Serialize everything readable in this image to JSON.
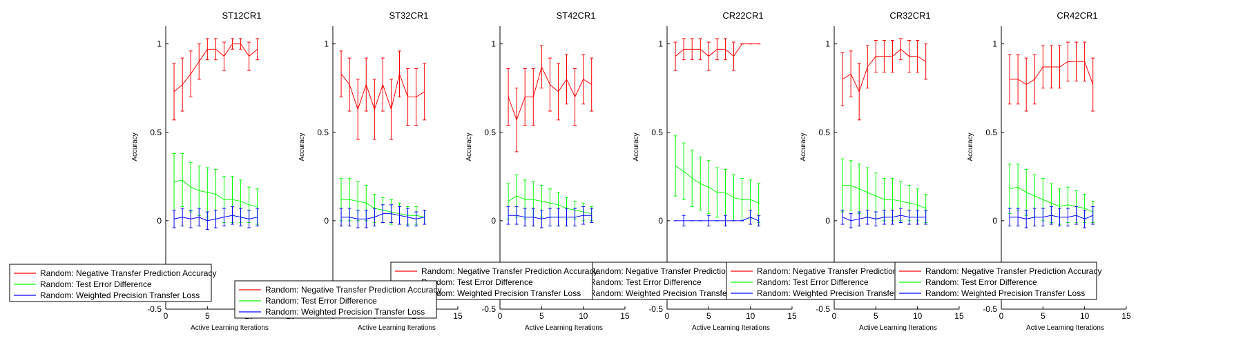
{
  "figure": {
    "legend_entries": [
      {
        "label": "Random: Negative Transfer Prediction Accuracy",
        "color": "#ff0000"
      },
      {
        "label": "Random: Test Error Difference",
        "color": "#00ff00"
      },
      {
        "label": "Random: Weighted Precision Transfer Loss",
        "color": "#0000ff"
      }
    ]
  },
  "chart_data": [
    {
      "type": "line",
      "title": "ST12CR1",
      "xlabel": "Active Learning Iterations",
      "ylabel": "Accuracy",
      "xlim": [
        0,
        15
      ],
      "ylim": [
        -0.5,
        1.1
      ],
      "xticks": [
        0,
        5,
        10,
        15
      ],
      "yticks": [
        -0.5,
        0,
        0.5,
        1
      ],
      "grid": false,
      "legend": "bottom-left",
      "series": [
        {
          "name": "Random: Negative Transfer Prediction Accuracy",
          "color": "#ff0000",
          "x": [
            1,
            2,
            3,
            4,
            5,
            6,
            7,
            8,
            9,
            10,
            11
          ],
          "y": [
            0.73,
            0.77,
            0.83,
            0.9,
            0.97,
            0.97,
            0.93,
            1.0,
            1.0,
            0.93,
            0.97
          ],
          "err": [
            0.16,
            0.15,
            0.13,
            0.1,
            0.06,
            0.06,
            0.08,
            0.03,
            0.03,
            0.08,
            0.06
          ]
        },
        {
          "name": "Random: Test Error Difference",
          "color": "#00ff00",
          "x": [
            1,
            2,
            3,
            4,
            5,
            6,
            7,
            8,
            9,
            10,
            11
          ],
          "y": [
            0.22,
            0.23,
            0.19,
            0.17,
            0.16,
            0.15,
            0.12,
            0.12,
            0.11,
            0.09,
            0.08
          ],
          "err": [
            0.16,
            0.15,
            0.14,
            0.14,
            0.14,
            0.14,
            0.13,
            0.13,
            0.12,
            0.1,
            0.1
          ]
        },
        {
          "name": "Random: Weighted Precision Transfer Loss",
          "color": "#0000ff",
          "x": [
            1,
            2,
            3,
            4,
            5,
            6,
            7,
            8,
            9,
            10,
            11
          ],
          "y": [
            0.01,
            0.02,
            0.01,
            0.02,
            0.0,
            0.01,
            0.02,
            0.03,
            0.02,
            0.01,
            0.02
          ],
          "err": [
            0.05,
            0.05,
            0.05,
            0.05,
            0.05,
            0.05,
            0.05,
            0.05,
            0.05,
            0.05,
            0.05
          ]
        }
      ]
    },
    {
      "type": "line",
      "title": "ST32CR1",
      "xlabel": "Active Learning Iterations",
      "ylabel": "Accuracy",
      "xlim": [
        0,
        15
      ],
      "ylim": [
        -0.5,
        1.1
      ],
      "xticks": [
        0,
        5,
        10,
        15
      ],
      "yticks": [
        -0.5,
        0,
        0.5,
        1
      ],
      "grid": false,
      "legend": "bottom-left",
      "series": [
        {
          "name": "Random: Negative Transfer Prediction Accuracy",
          "color": "#ff0000",
          "x": [
            1,
            2,
            3,
            4,
            5,
            6,
            7,
            8,
            9,
            10,
            11
          ],
          "y": [
            0.83,
            0.77,
            0.63,
            0.77,
            0.63,
            0.77,
            0.63,
            0.83,
            0.7,
            0.7,
            0.73
          ],
          "err": [
            0.13,
            0.15,
            0.17,
            0.15,
            0.17,
            0.15,
            0.17,
            0.13,
            0.16,
            0.16,
            0.16
          ]
        },
        {
          "name": "Random: Test Error Difference",
          "color": "#00ff00",
          "x": [
            1,
            2,
            3,
            4,
            5,
            6,
            7,
            8,
            9,
            10,
            11
          ],
          "y": [
            0.12,
            0.12,
            0.11,
            0.1,
            0.07,
            0.06,
            0.05,
            0.04,
            0.03,
            0.03,
            0.02
          ],
          "err": [
            0.12,
            0.12,
            0.11,
            0.1,
            0.08,
            0.07,
            0.07,
            0.06,
            0.05,
            0.05,
            0.04
          ]
        },
        {
          "name": "Random: Weighted Precision Transfer Loss",
          "color": "#0000ff",
          "x": [
            1,
            2,
            3,
            4,
            5,
            6,
            7,
            8,
            9,
            10,
            11
          ],
          "y": [
            0.02,
            0.02,
            0.01,
            0.01,
            0.02,
            0.04,
            0.04,
            0.03,
            0.02,
            0.01,
            0.02
          ],
          "err": [
            0.05,
            0.05,
            0.05,
            0.05,
            0.05,
            0.05,
            0.05,
            0.05,
            0.05,
            0.04,
            0.04
          ]
        }
      ]
    },
    {
      "type": "line",
      "title": "ST42CR1",
      "xlabel": "Active Learning Iterations",
      "ylabel": "Accuracy",
      "xlim": [
        0,
        15
      ],
      "ylim": [
        -0.5,
        1.1
      ],
      "xticks": [
        0,
        5,
        10,
        15
      ],
      "yticks": [
        -0.5,
        0,
        0.5,
        1
      ],
      "grid": false,
      "legend": "bottom-left",
      "series": [
        {
          "name": "Random: Negative Transfer Prediction Accuracy",
          "color": "#ff0000",
          "x": [
            1,
            2,
            3,
            4,
            5,
            6,
            7,
            8,
            9,
            10,
            11
          ],
          "y": [
            0.7,
            0.57,
            0.7,
            0.7,
            0.87,
            0.77,
            0.73,
            0.8,
            0.7,
            0.8,
            0.77
          ],
          "err": [
            0.16,
            0.18,
            0.16,
            0.16,
            0.12,
            0.15,
            0.16,
            0.14,
            0.16,
            0.14,
            0.15
          ]
        },
        {
          "name": "Random: Test Error Difference",
          "color": "#00ff00",
          "x": [
            1,
            2,
            3,
            4,
            5,
            6,
            7,
            8,
            9,
            10,
            11
          ],
          "y": [
            0.11,
            0.14,
            0.12,
            0.12,
            0.11,
            0.1,
            0.09,
            0.07,
            0.06,
            0.05,
            0.04
          ],
          "err": [
            0.1,
            0.12,
            0.11,
            0.1,
            0.09,
            0.08,
            0.07,
            0.06,
            0.05,
            0.05,
            0.04
          ]
        },
        {
          "name": "Random: Weighted Precision Transfer Loss",
          "color": "#0000ff",
          "x": [
            1,
            2,
            3,
            4,
            5,
            6,
            7,
            8,
            9,
            10,
            11
          ],
          "y": [
            0.03,
            0.03,
            0.02,
            0.02,
            0.01,
            0.02,
            0.02,
            0.02,
            0.02,
            0.03,
            0.03
          ],
          "err": [
            0.05,
            0.05,
            0.05,
            0.05,
            0.05,
            0.05,
            0.05,
            0.05,
            0.05,
            0.05,
            0.04
          ]
        }
      ]
    },
    {
      "type": "line",
      "title": "CR22CR1",
      "xlabel": "Active Learning Iterations",
      "ylabel": "Accuracy",
      "xlim": [
        0,
        15
      ],
      "ylim": [
        -0.5,
        1.1
      ],
      "xticks": [
        0,
        5,
        10,
        15
      ],
      "yticks": [
        -0.5,
        0,
        0.5,
        1
      ],
      "grid": false,
      "legend": "bottom-left",
      "series": [
        {
          "name": "Random: Negative Transfer Prediction Accuracy",
          "color": "#ff0000",
          "x": [
            1,
            2,
            3,
            4,
            5,
            6,
            7,
            8,
            9,
            10,
            11
          ],
          "y": [
            0.93,
            0.97,
            0.97,
            0.97,
            0.93,
            0.97,
            0.97,
            0.93,
            1.0,
            1.0,
            1.0
          ],
          "err": [
            0.08,
            0.06,
            0.06,
            0.06,
            0.08,
            0.06,
            0.06,
            0.08,
            0.0,
            0.0,
            0.0
          ]
        },
        {
          "name": "Random: Test Error Difference",
          "color": "#00ff00",
          "x": [
            1,
            2,
            3,
            4,
            5,
            6,
            7,
            8,
            9,
            10,
            11
          ],
          "y": [
            0.31,
            0.28,
            0.24,
            0.21,
            0.19,
            0.16,
            0.16,
            0.13,
            0.12,
            0.12,
            0.1
          ],
          "err": [
            0.17,
            0.16,
            0.16,
            0.15,
            0.15,
            0.14,
            0.13,
            0.13,
            0.12,
            0.11,
            0.11
          ]
        },
        {
          "name": "Random: Weighted Precision Transfer Loss",
          "color": "#0000ff",
          "x": [
            1,
            2,
            3,
            4,
            5,
            6,
            7,
            8,
            9,
            10,
            11
          ],
          "y": [
            0.0,
            0.0,
            0.0,
            0.0,
            0.0,
            0.0,
            0.0,
            0.0,
            0.0,
            0.02,
            0.0
          ],
          "err": [
            0.0,
            0.03,
            0.0,
            0.0,
            0.03,
            0.0,
            0.03,
            0.0,
            0.0,
            0.04,
            0.03
          ]
        }
      ]
    },
    {
      "type": "line",
      "title": "CR32CR1",
      "xlabel": "Active Learning Iterations",
      "ylabel": "Accuracy",
      "xlim": [
        0,
        15
      ],
      "ylim": [
        -0.5,
        1.1
      ],
      "xticks": [
        0,
        5,
        10,
        15
      ],
      "yticks": [
        -0.5,
        0,
        0.5,
        1
      ],
      "grid": false,
      "legend": "bottom-left",
      "series": [
        {
          "name": "Random: Negative Transfer Prediction Accuracy",
          "color": "#ff0000",
          "x": [
            1,
            2,
            3,
            4,
            5,
            6,
            7,
            8,
            9,
            10,
            11
          ],
          "y": [
            0.8,
            0.83,
            0.73,
            0.87,
            0.93,
            0.93,
            0.93,
            0.97,
            0.93,
            0.93,
            0.9
          ],
          "err": [
            0.15,
            0.13,
            0.16,
            0.12,
            0.09,
            0.09,
            0.09,
            0.06,
            0.09,
            0.09,
            0.1
          ]
        },
        {
          "name": "Random: Test Error Difference",
          "color": "#00ff00",
          "x": [
            1,
            2,
            3,
            4,
            5,
            6,
            7,
            8,
            9,
            10,
            11
          ],
          "y": [
            0.2,
            0.2,
            0.18,
            0.16,
            0.14,
            0.12,
            0.12,
            0.11,
            0.1,
            0.09,
            0.07
          ],
          "err": [
            0.15,
            0.14,
            0.14,
            0.14,
            0.13,
            0.12,
            0.12,
            0.11,
            0.1,
            0.09,
            0.08
          ]
        },
        {
          "name": "Random: Weighted Precision Transfer Loss",
          "color": "#0000ff",
          "x": [
            1,
            2,
            3,
            4,
            5,
            6,
            7,
            8,
            9,
            10,
            11
          ],
          "y": [
            0.02,
            0.0,
            0.01,
            0.02,
            0.01,
            0.02,
            0.02,
            0.03,
            0.02,
            0.02,
            0.02
          ],
          "err": [
            0.04,
            0.04,
            0.04,
            0.04,
            0.04,
            0.04,
            0.04,
            0.04,
            0.04,
            0.04,
            0.04
          ]
        }
      ]
    },
    {
      "type": "line",
      "title": "CR42CR1",
      "xlabel": "Active Learning Iterations",
      "ylabel": "Accuracy",
      "xlim": [
        0,
        15
      ],
      "ylim": [
        -0.5,
        1.1
      ],
      "xticks": [
        0,
        5,
        10,
        15
      ],
      "yticks": [
        -0.5,
        0,
        0.5,
        1
      ],
      "grid": false,
      "legend": "bottom-left",
      "series": [
        {
          "name": "Random: Negative Transfer Prediction Accuracy",
          "color": "#ff0000",
          "x": [
            1,
            2,
            3,
            4,
            5,
            6,
            7,
            8,
            9,
            10,
            11
          ],
          "y": [
            0.8,
            0.8,
            0.77,
            0.8,
            0.87,
            0.87,
            0.87,
            0.9,
            0.9,
            0.9,
            0.77
          ],
          "err": [
            0.14,
            0.14,
            0.15,
            0.14,
            0.12,
            0.12,
            0.12,
            0.11,
            0.11,
            0.11,
            0.15
          ]
        },
        {
          "name": "Random: Test Error Difference",
          "color": "#00ff00",
          "x": [
            1,
            2,
            3,
            4,
            5,
            6,
            7,
            8,
            9,
            10,
            11
          ],
          "y": [
            0.18,
            0.19,
            0.16,
            0.14,
            0.12,
            0.1,
            0.08,
            0.09,
            0.08,
            0.07,
            0.05
          ],
          "err": [
            0.14,
            0.13,
            0.13,
            0.12,
            0.12,
            0.11,
            0.1,
            0.1,
            0.09,
            0.08,
            0.06
          ]
        },
        {
          "name": "Random: Weighted Precision Transfer Loss",
          "color": "#0000ff",
          "x": [
            1,
            2,
            3,
            4,
            5,
            6,
            7,
            8,
            9,
            10,
            11
          ],
          "y": [
            0.02,
            0.02,
            0.01,
            0.02,
            0.02,
            0.03,
            0.02,
            0.02,
            0.03,
            0.01,
            0.03
          ],
          "err": [
            0.05,
            0.05,
            0.05,
            0.05,
            0.05,
            0.05,
            0.05,
            0.05,
            0.05,
            0.05,
            0.05
          ]
        }
      ]
    }
  ]
}
